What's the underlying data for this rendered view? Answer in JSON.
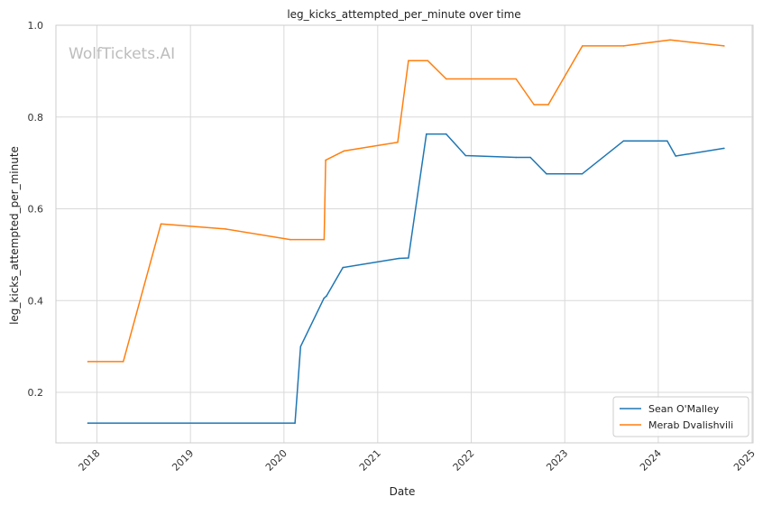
{
  "chart_data": {
    "type": "line",
    "title": "leg_kicks_attempted_per_minute over time",
    "xlabel": "Date",
    "ylabel": "leg_kicks_attempted_per_minute",
    "watermark": "WolfTickets.AI",
    "xlim": [
      "2017-07-25",
      "2025-01-05"
    ],
    "ylim": [
      0.09,
      1.0
    ],
    "x_ticks": [
      "2018",
      "2019",
      "2020",
      "2021",
      "2022",
      "2023",
      "2024",
      "2025"
    ],
    "y_ticks": [
      "0.2",
      "0.4",
      "0.6",
      "0.8",
      "1.0"
    ],
    "grid": true,
    "legend_position": "bottom-right",
    "series": [
      {
        "name": "Sean O'Malley",
        "color": "#1f77b4",
        "points": [
          [
            "2017-11-27",
            0.133
          ],
          [
            "2020-02-13",
            0.133
          ],
          [
            "2020-03-06",
            0.3
          ],
          [
            "2020-06-05",
            0.405
          ],
          [
            "2020-06-15",
            0.41
          ],
          [
            "2020-08-18",
            0.472
          ],
          [
            "2021-03-25",
            0.492
          ],
          [
            "2021-05-01",
            0.493
          ],
          [
            "2021-07-10",
            0.763
          ],
          [
            "2021-09-25",
            0.763
          ],
          [
            "2021-12-10",
            0.716
          ],
          [
            "2022-06-25",
            0.712
          ],
          [
            "2022-08-20",
            0.712
          ],
          [
            "2022-10-22",
            0.676
          ],
          [
            "2023-03-10",
            0.676
          ],
          [
            "2023-08-19",
            0.748
          ],
          [
            "2024-02-05",
            0.748
          ],
          [
            "2024-03-09",
            0.715
          ],
          [
            "2024-09-14",
            0.732
          ]
        ]
      },
      {
        "name": "Merab Dvalishvili",
        "color": "#ff7f0e",
        "points": [
          [
            "2017-11-27",
            0.267
          ],
          [
            "2018-04-14",
            0.267
          ],
          [
            "2018-09-08",
            0.567
          ],
          [
            "2019-05-18",
            0.556
          ],
          [
            "2020-01-25",
            0.533
          ],
          [
            "2020-06-06",
            0.533
          ],
          [
            "2020-06-12",
            0.706
          ],
          [
            "2020-08-22",
            0.726
          ],
          [
            "2021-03-20",
            0.745
          ],
          [
            "2021-05-01",
            0.923
          ],
          [
            "2021-07-15",
            0.923
          ],
          [
            "2021-09-25",
            0.883
          ],
          [
            "2022-06-25",
            0.883
          ],
          [
            "2022-09-03",
            0.827
          ],
          [
            "2022-10-29",
            0.827
          ],
          [
            "2023-03-11",
            0.955
          ],
          [
            "2023-08-19",
            0.955
          ],
          [
            "2024-02-17",
            0.968
          ],
          [
            "2024-09-14",
            0.955
          ]
        ]
      }
    ]
  }
}
